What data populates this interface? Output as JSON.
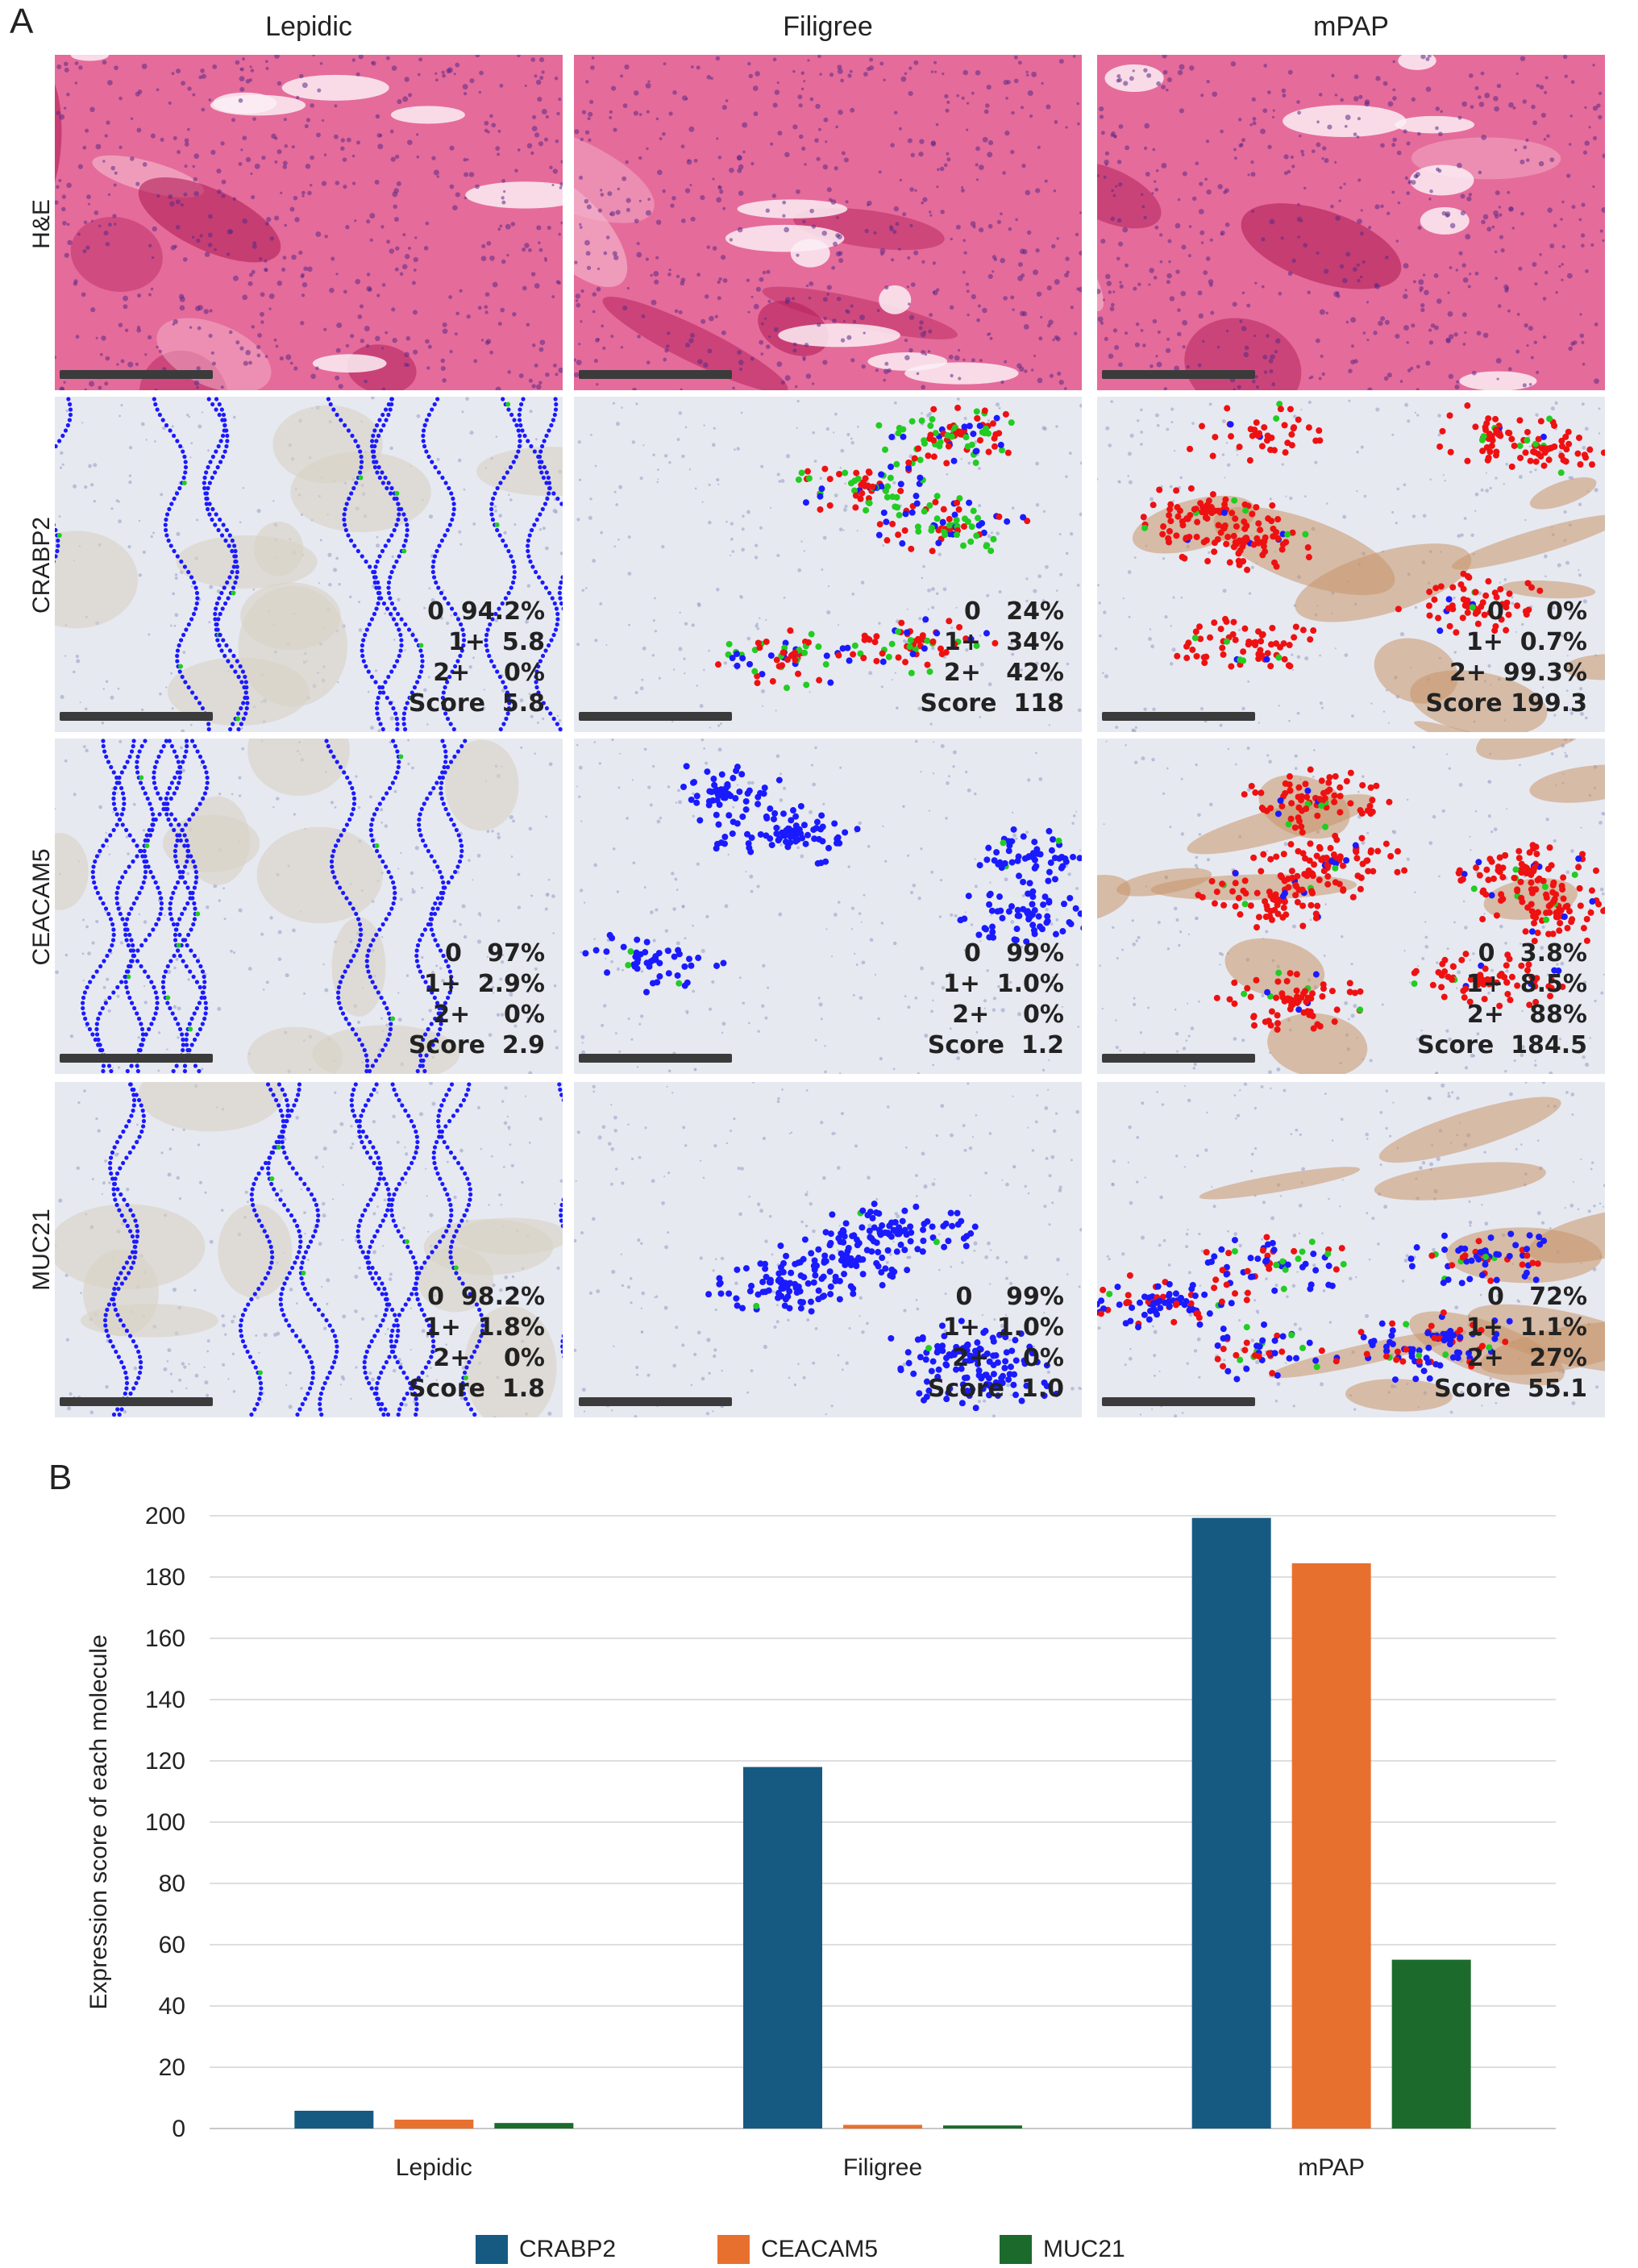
{
  "figure": {
    "panel_a_label": "A",
    "panel_b_label": "B",
    "columns": [
      "Lepidic",
      "Filigree",
      "mPAP"
    ],
    "rows": [
      "H&E",
      "CRABP2",
      "CEACAM5",
      "MUC21"
    ],
    "colors": {
      "he_bg": "#e56b9a",
      "he_dark": "#b3205a",
      "ihc_bg": "#e7e9f1",
      "dot_blue": "#1a1aff",
      "dot_red": "#ee1111",
      "dot_green": "#22cc22",
      "brown": "#c9956a"
    },
    "ihc_stats": [
      {
        "marker": "CRABP2",
        "panels": [
          {
            "column": "Lepidic",
            "lines": [
              "0  94.2%",
              "1+  5.8",
              "2+    0%",
              "Score  5.8"
            ]
          },
          {
            "column": "Filigree",
            "lines": [
              "0   24%",
              "1+   34%",
              "2+   42%",
              "Score  118"
            ]
          },
          {
            "column": "mPAP",
            "lines": [
              "0     0%",
              "1+  0.7%",
              "2+  99.3%",
              "Score 199.3"
            ]
          }
        ]
      },
      {
        "marker": "CEACAM5",
        "panels": [
          {
            "column": "Lepidic",
            "lines": [
              "0   97%",
              "1+  2.9%",
              "2+    0%",
              "Score  2.9"
            ]
          },
          {
            "column": "Filigree",
            "lines": [
              "0   99%",
              "1+  1.0%",
              "2+    0%",
              "Score  1.2"
            ]
          },
          {
            "column": "mPAP",
            "lines": [
              "0   3.8%",
              "1+  8.5%",
              "2+   88%",
              "Score  184.5"
            ]
          }
        ]
      },
      {
        "marker": "MUC21",
        "panels": [
          {
            "column": "Lepidic",
            "lines": [
              "0  98.2%",
              "1+  1.8%",
              "2+    0%",
              "Score  1.8"
            ]
          },
          {
            "column": "Filigree",
            "lines": [
              "0    99%",
              "1+  1.0%",
              "2+    0%",
              "Score  1.0"
            ]
          },
          {
            "column": "mPAP",
            "lines": [
              "0   72%",
              "1+  1.1%",
              "2+   27%",
              "Score  55.1"
            ]
          }
        ]
      }
    ]
  },
  "chart_data": {
    "type": "bar",
    "title": "",
    "xlabel": "",
    "ylabel": "Expression score of each molecule",
    "categories": [
      "Lepidic",
      "Filigree",
      "mPAP"
    ],
    "series": [
      {
        "name": "CRABP2",
        "color": "#165a82",
        "values": [
          5.8,
          118,
          199.3
        ]
      },
      {
        "name": "CEACAM5",
        "color": "#e8702f",
        "values": [
          2.9,
          1.2,
          184.5
        ]
      },
      {
        "name": "MUC21",
        "color": "#1c6b2c",
        "values": [
          1.8,
          1.0,
          55.1
        ]
      }
    ],
    "ylim": [
      0,
      200
    ],
    "yticks": [
      0,
      20,
      40,
      60,
      80,
      100,
      120,
      140,
      160,
      180,
      200
    ],
    "grid": true,
    "legend_position": "bottom"
  }
}
